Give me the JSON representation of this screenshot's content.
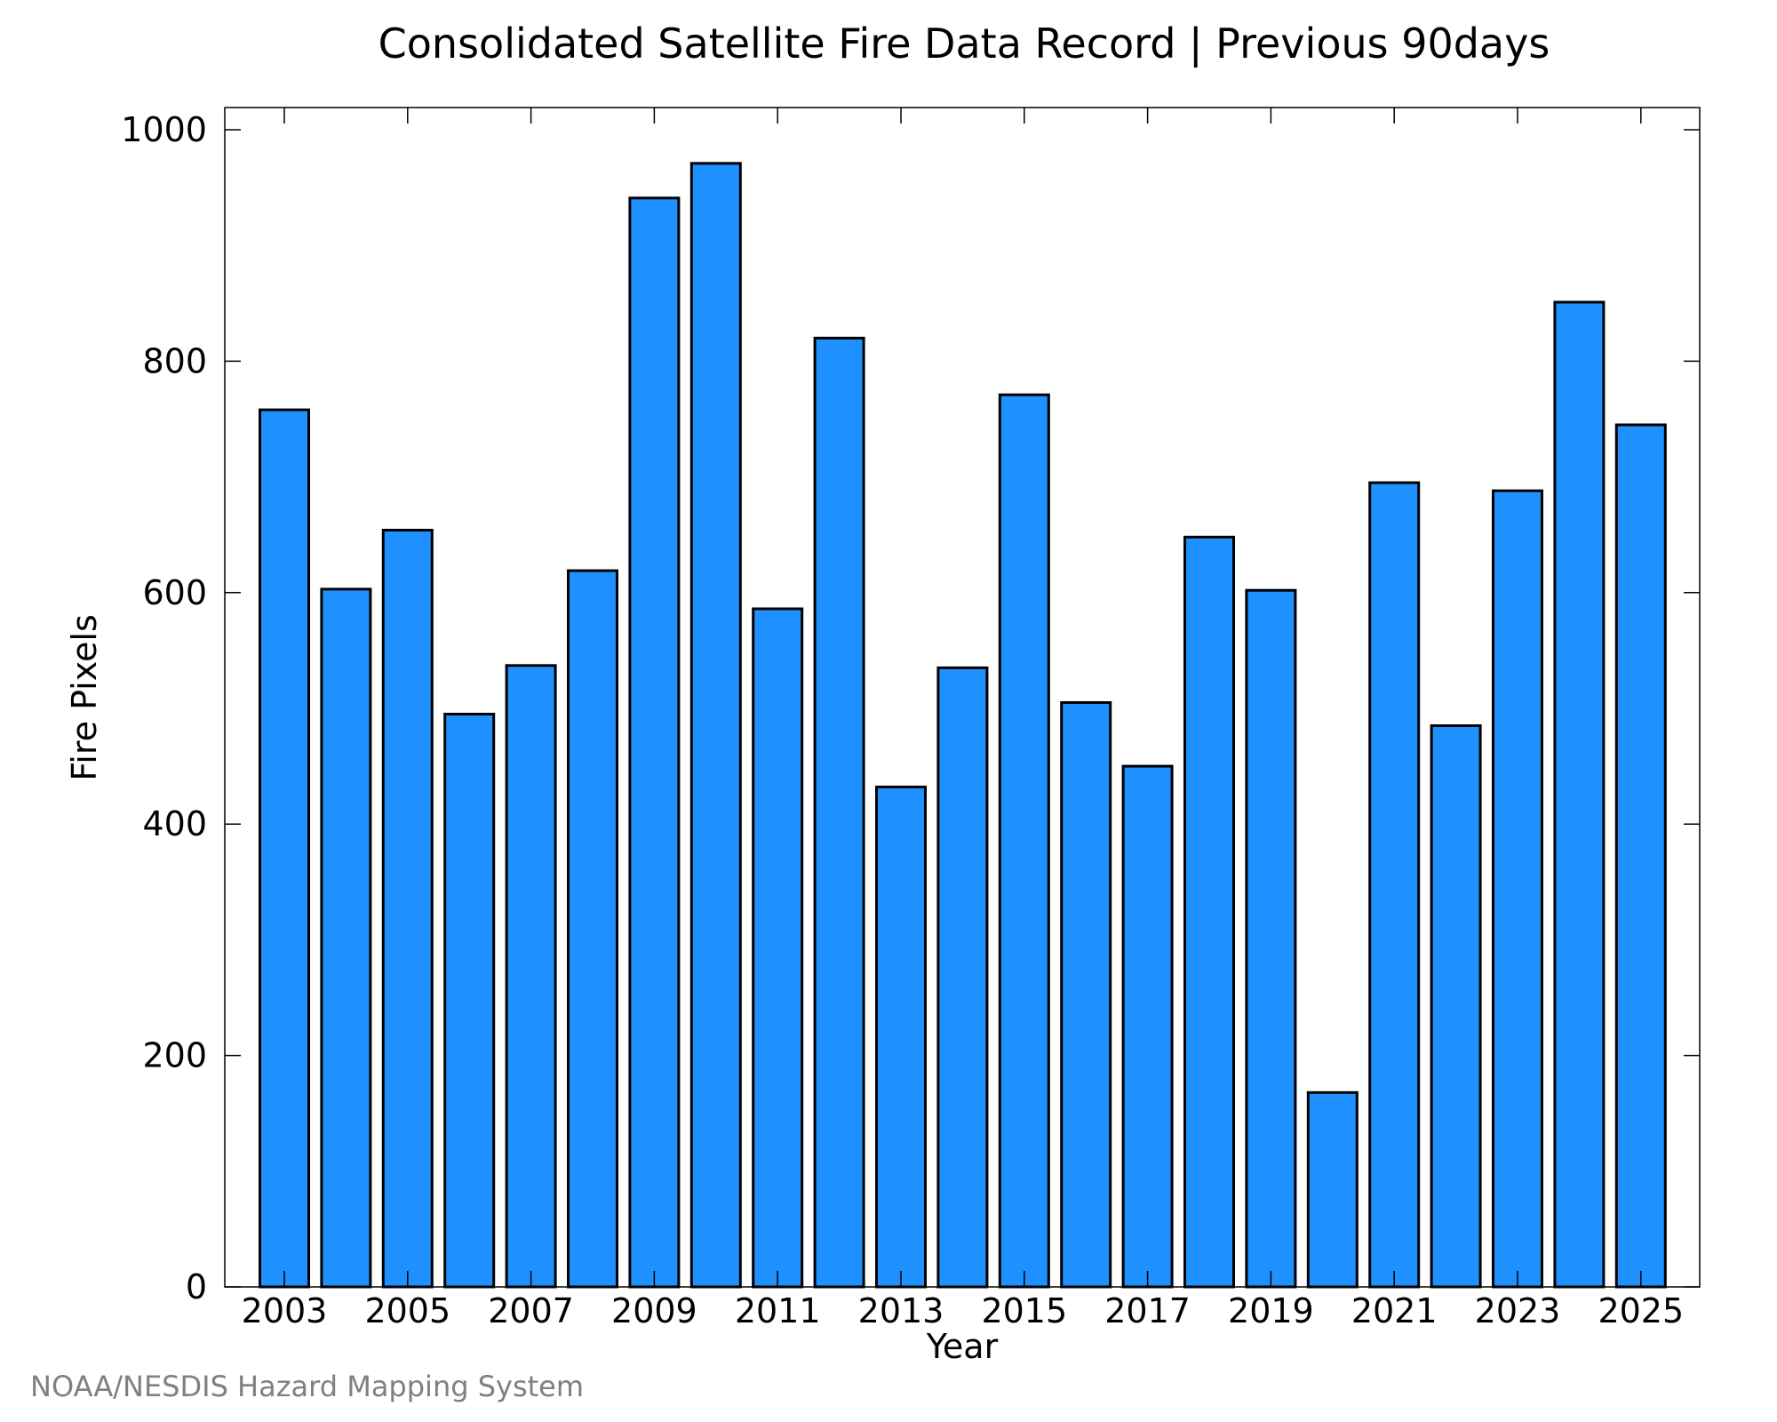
{
  "chart_data": {
    "type": "bar",
    "title": "Consolidated Satellite Fire Data Record | Previous 90days",
    "xlabel": "Year",
    "ylabel": "Fire Pixels",
    "ylim": [
      0,
      1000
    ],
    "yticks": [
      0,
      200,
      400,
      600,
      800,
      1000
    ],
    "xticks": [
      2003,
      2005,
      2007,
      2009,
      2011,
      2013,
      2015,
      2017,
      2019,
      2021,
      2023,
      2025
    ],
    "categories": [
      2003,
      2004,
      2005,
      2006,
      2007,
      2008,
      2009,
      2010,
      2011,
      2012,
      2013,
      2014,
      2015,
      2016,
      2017,
      2018,
      2019,
      2020,
      2021,
      2022,
      2023,
      2024,
      2025
    ],
    "values": [
      758,
      603,
      654,
      495,
      537,
      619,
      941,
      971,
      586,
      820,
      432,
      535,
      771,
      505,
      450,
      648,
      602,
      168,
      695,
      485,
      688,
      851,
      745
    ],
    "bar_color": "#1e90ff",
    "grid": false,
    "credit": "NOAA/NESDIS Hazard Mapping System"
  }
}
